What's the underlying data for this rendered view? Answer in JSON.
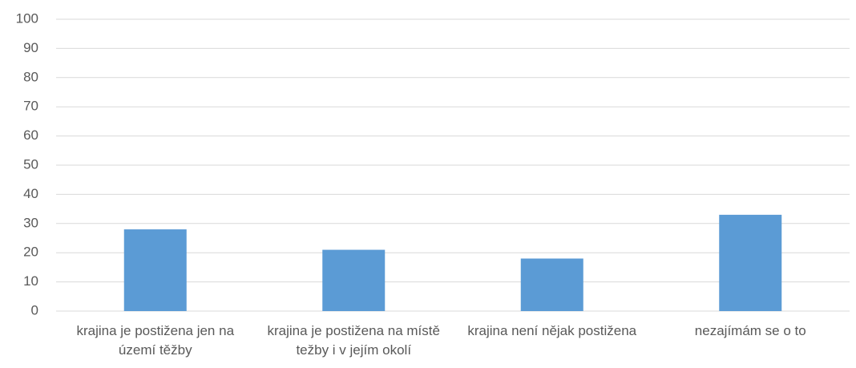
{
  "chart_data": {
    "type": "bar",
    "categories": [
      "krajina je postižena jen na území těžby",
      "krajina je postižena na místě težby i v jejím okolí",
      "krajina není nějak postižena",
      "nezajímám se o to"
    ],
    "values": [
      28,
      21,
      18,
      33
    ],
    "color": "#5b9bd5",
    "ylim": [
      0,
      100
    ],
    "yticks": [
      0,
      10,
      20,
      30,
      40,
      50,
      60,
      70,
      80,
      90,
      100
    ],
    "grid": true
  }
}
